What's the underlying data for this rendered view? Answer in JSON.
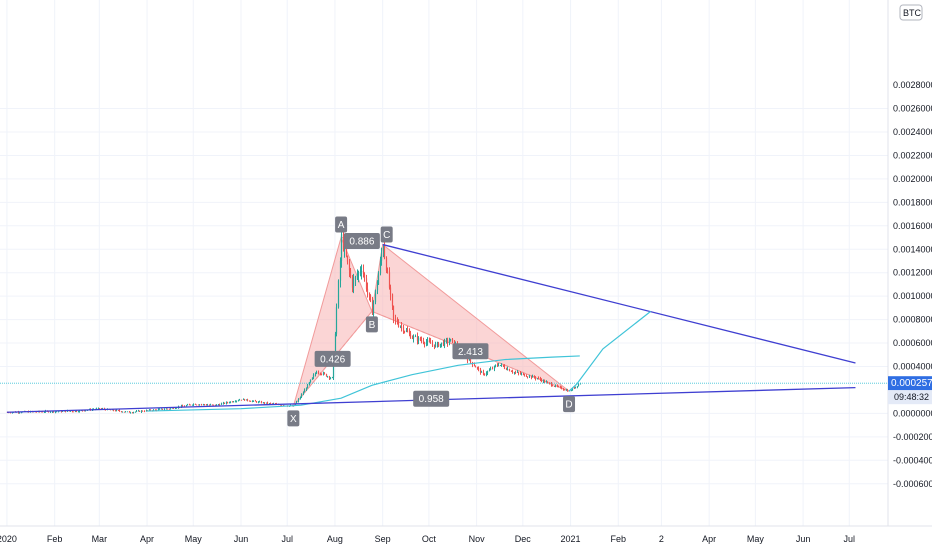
{
  "chart_data": {
    "type": "candlestick",
    "symbol_badge": "BTC",
    "price_axis": {
      "ticks": [
        "0.00260000",
        "0.00240000",
        "0.00220000",
        "0.00200000",
        "0.00180000",
        "0.00160000",
        "0.00140000",
        "0.00120000",
        "0.00100000",
        "0.00080000",
        "0.00060000",
        "0.00040000",
        "0.00000000",
        "-0.00020000",
        "-0.00040000",
        "-0.00060000"
      ],
      "top_tick": "0.0028000",
      "range": [
        -0.00068,
        0.0029
      ]
    },
    "time_axis": {
      "labels": [
        "2020",
        "Feb",
        "Mar",
        "Apr",
        "May",
        "Jun",
        "Jul",
        "Aug",
        "Sep",
        "Oct",
        "Nov",
        "Dec",
        "2021",
        "Feb",
        "2",
        "Apr",
        "May",
        "Jun",
        "Jul"
      ]
    },
    "current_price": {
      "value": "0.00025762",
      "countdown": "09:48:32",
      "level": 0.00025762
    },
    "pattern": {
      "name": "XABCD",
      "points": [
        {
          "label": "X",
          "date": "2020-07-05",
          "price": 6e-05
        },
        {
          "label": "A",
          "date": "2020-08-05",
          "price": 0.0015
        },
        {
          "label": "B",
          "date": "2020-08-25",
          "price": 0.00087
        },
        {
          "label": "C",
          "date": "2020-09-01",
          "price": 0.00144
        },
        {
          "label": "D",
          "date": "2020-12-31",
          "price": 0.00019
        }
      ],
      "ratios": [
        {
          "text": "0.426",
          "between": "XB"
        },
        {
          "text": "0.886",
          "between": "AC"
        },
        {
          "text": "2.413",
          "between": "BD"
        },
        {
          "text": "0.958",
          "between": "XD"
        }
      ]
    },
    "trendlines": {
      "upper": [
        {
          "date": "2020-09-01",
          "price": 0.00144
        },
        {
          "date": "2021-07-05",
          "price": 0.00043
        }
      ],
      "lower": [
        {
          "date": "2020-01-01",
          "price": 1e-05
        },
        {
          "date": "2021-07-05",
          "price": 0.00022
        }
      ]
    },
    "projection": [
      {
        "date": "2020-12-31",
        "price": 0.00019
      },
      {
        "date": "2021-01-05",
        "price": 0.00025
      },
      {
        "date": "2021-01-22",
        "price": 0.00055
      },
      {
        "date": "2021-02-22",
        "price": 0.00087
      }
    ],
    "moving_average": [
      {
        "date": "2020-04-01",
        "price": 2e-05
      },
      {
        "date": "2020-06-01",
        "price": 4e-05
      },
      {
        "date": "2020-07-10",
        "price": 7e-05
      },
      {
        "date": "2020-08-05",
        "price": 0.00013
      },
      {
        "date": "2020-08-25",
        "price": 0.00024
      },
      {
        "date": "2020-09-20",
        "price": 0.00033
      },
      {
        "date": "2020-10-20",
        "price": 0.00041
      },
      {
        "date": "2020-11-20",
        "price": 0.00046
      },
      {
        "date": "2020-12-20",
        "price": 0.00048
      },
      {
        "date": "2021-01-07",
        "price": 0.00049
      }
    ],
    "price_path": [
      {
        "date": "2020-01-01",
        "price": 1e-05
      },
      {
        "date": "2020-02-15",
        "price": 2e-05
      },
      {
        "date": "2020-03-01",
        "price": 4e-05
      },
      {
        "date": "2020-03-20",
        "price": 1e-05
      },
      {
        "date": "2020-04-15",
        "price": 4e-05
      },
      {
        "date": "2020-05-01",
        "price": 8e-05
      },
      {
        "date": "2020-05-15",
        "price": 7e-05
      },
      {
        "date": "2020-06-01",
        "price": 0.00012
      },
      {
        "date": "2020-06-15",
        "price": 9e-05
      },
      {
        "date": "2020-07-05",
        "price": 6e-05
      },
      {
        "date": "2020-07-20",
        "price": 0.00036
      },
      {
        "date": "2020-07-30",
        "price": 0.0003
      },
      {
        "date": "2020-08-05",
        "price": 0.0015
      },
      {
        "date": "2020-08-12",
        "price": 0.0011
      },
      {
        "date": "2020-08-18",
        "price": 0.00125
      },
      {
        "date": "2020-08-25",
        "price": 0.00087
      },
      {
        "date": "2020-09-01",
        "price": 0.00144
      },
      {
        "date": "2020-09-08",
        "price": 0.0008
      },
      {
        "date": "2020-09-20",
        "price": 0.00065
      },
      {
        "date": "2020-10-05",
        "price": 0.00058
      },
      {
        "date": "2020-10-15",
        "price": 0.00062
      },
      {
        "date": "2020-10-25",
        "price": 0.00048
      },
      {
        "date": "2020-11-05",
        "price": 0.00033
      },
      {
        "date": "2020-11-15",
        "price": 0.00042
      },
      {
        "date": "2020-11-25",
        "price": 0.00035
      },
      {
        "date": "2020-12-10",
        "price": 0.0003
      },
      {
        "date": "2020-12-20",
        "price": 0.00024
      },
      {
        "date": "2020-12-31",
        "price": 0.00019
      },
      {
        "date": "2021-01-07",
        "price": 0.00026
      }
    ],
    "colors": {
      "up": "#26a69a",
      "down": "#ef5350",
      "pattern_fill": "#f7b2b2",
      "trendline": "#3f3fd1",
      "projection": "#40c4d8",
      "moving_average": "#40c4d8",
      "label_bg": "#787b86",
      "price_label_bg": "#2f6ee3"
    }
  }
}
